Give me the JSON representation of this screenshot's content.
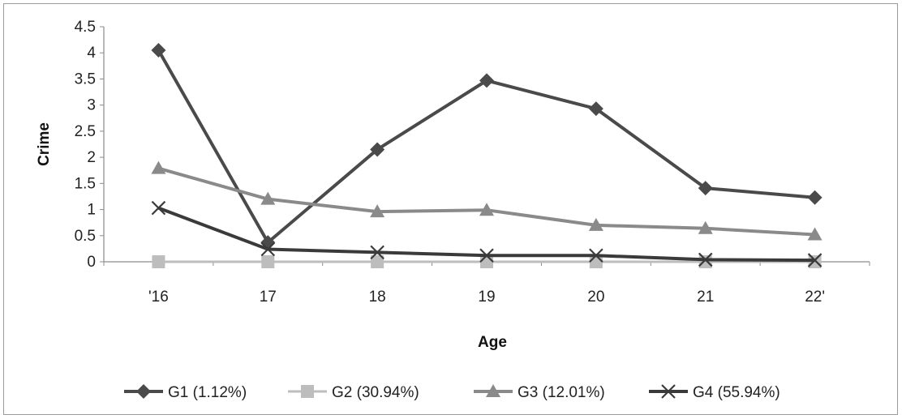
{
  "chart_data": {
    "type": "line",
    "title": "",
    "xlabel": "Age",
    "ylabel": "Crime",
    "categories": [
      "'16",
      "17",
      "18",
      "19",
      "20",
      "21",
      "22'"
    ],
    "ylim": [
      0,
      4.5
    ],
    "yticks": [
      "0",
      "0.5",
      "1",
      "1.5",
      "2",
      "2.5",
      "3",
      "3.5",
      "4",
      "4.5"
    ],
    "grid": false,
    "legend_position": "bottom",
    "series": [
      {
        "name": "G1 (1.12%)",
        "values": [
          4.05,
          0.37,
          2.15,
          3.47,
          2.93,
          1.41,
          1.23
        ],
        "color": "#4a4a4a",
        "marker": "diamond"
      },
      {
        "name": "G2 (30.94%)",
        "values": [
          0.0,
          0.0,
          0.0,
          0.0,
          0.0,
          0.0,
          0.0
        ],
        "color": "#bdbdbd",
        "marker": "square"
      },
      {
        "name": "G3 (12.01%)",
        "values": [
          1.79,
          1.2,
          0.96,
          0.99,
          0.7,
          0.64,
          0.52
        ],
        "color": "#8a8a8a",
        "marker": "triangle"
      },
      {
        "name": "G4 (55.94%)",
        "values": [
          1.03,
          0.24,
          0.18,
          0.12,
          0.12,
          0.04,
          0.03
        ],
        "color": "#3a3a3a",
        "marker": "x"
      }
    ]
  }
}
